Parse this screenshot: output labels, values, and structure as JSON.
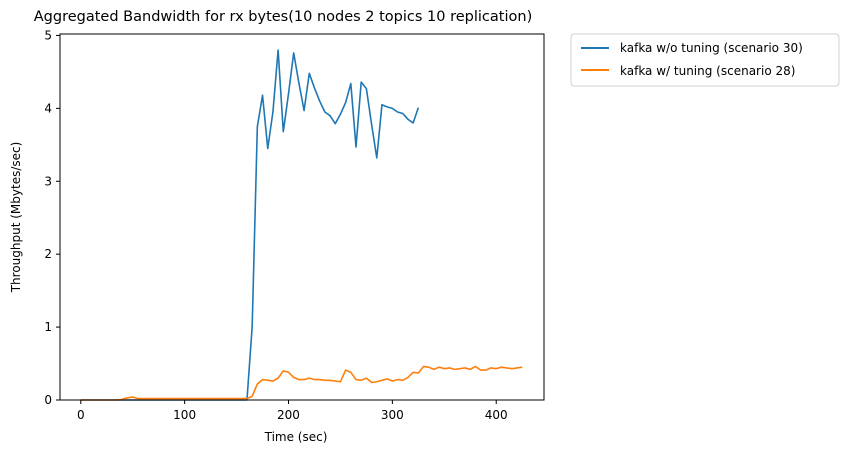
{
  "chart_data": {
    "type": "line",
    "title": "Aggregated Bandwidth for rx bytes(10 nodes 2 topics 10 replication)",
    "xlabel": "Time (sec)",
    "ylabel": "Throughput (Mbytes/sec)",
    "xlim": [
      -20,
      446
    ],
    "ylim": [
      0,
      5.02
    ],
    "xticks": [
      0,
      100,
      200,
      300,
      400
    ],
    "yticks": [
      0,
      1,
      2,
      3,
      4,
      5
    ],
    "grid": false,
    "legend_position": "outside-top-right",
    "series": [
      {
        "name": "kafka w/o tuning (scenario 30)",
        "color": "#1f77b4",
        "x": [
          0,
          5,
          10,
          15,
          20,
          25,
          30,
          35,
          40,
          45,
          50,
          55,
          60,
          65,
          70,
          75,
          80,
          85,
          90,
          95,
          100,
          105,
          110,
          115,
          120,
          125,
          130,
          135,
          140,
          145,
          150,
          155,
          160,
          165,
          170,
          175,
          180,
          185,
          190,
          195,
          200,
          205,
          210,
          215,
          220,
          225,
          230,
          235,
          240,
          245,
          250,
          255,
          260,
          265,
          270,
          275,
          280,
          285,
          290,
          295,
          300,
          305,
          310,
          315,
          320,
          325
        ],
        "y": [
          0,
          0,
          0,
          0,
          0,
          0,
          0,
          0,
          0,
          0,
          0,
          0,
          0,
          0,
          0,
          0,
          0,
          0,
          0,
          0,
          0,
          0,
          0,
          0,
          0,
          0,
          0,
          0,
          0,
          0,
          0,
          0,
          0,
          1.0,
          3.75,
          4.18,
          3.45,
          3.95,
          4.8,
          3.68,
          4.2,
          4.76,
          4.35,
          3.97,
          4.48,
          4.28,
          4.1,
          3.95,
          3.9,
          3.79,
          3.92,
          4.08,
          4.34,
          3.47,
          4.36,
          4.27,
          3.78,
          3.32,
          4.05,
          4.02,
          4.0,
          3.95,
          3.93,
          3.85,
          3.8,
          4.01
        ]
      },
      {
        "name": "kafka w/ tuning (scenario 28)",
        "color": "#ff7f0e",
        "x": [
          0,
          5,
          10,
          15,
          20,
          25,
          30,
          35,
          40,
          45,
          50,
          55,
          60,
          65,
          70,
          75,
          80,
          85,
          90,
          95,
          100,
          105,
          110,
          115,
          120,
          125,
          130,
          135,
          140,
          145,
          150,
          155,
          160,
          165,
          170,
          175,
          180,
          185,
          190,
          195,
          200,
          205,
          210,
          215,
          220,
          225,
          230,
          235,
          240,
          245,
          250,
          255,
          260,
          265,
          270,
          275,
          280,
          285,
          290,
          295,
          300,
          305,
          310,
          315,
          320,
          325,
          330,
          335,
          340,
          345,
          350,
          355,
          360,
          365,
          370,
          375,
          380,
          385,
          390,
          395,
          400,
          405,
          410,
          415,
          420,
          425
        ],
        "y": [
          0,
          0,
          0,
          0,
          0,
          0,
          0,
          0,
          0.01,
          0.03,
          0.04,
          0.02,
          0.02,
          0.02,
          0.02,
          0.02,
          0.02,
          0.02,
          0.02,
          0.02,
          0.02,
          0.02,
          0.02,
          0.02,
          0.02,
          0.02,
          0.02,
          0.02,
          0.02,
          0.02,
          0.02,
          0.02,
          0.02,
          0.05,
          0.22,
          0.28,
          0.27,
          0.26,
          0.3,
          0.4,
          0.38,
          0.31,
          0.28,
          0.28,
          0.3,
          0.28,
          0.28,
          0.27,
          0.27,
          0.26,
          0.25,
          0.41,
          0.38,
          0.28,
          0.27,
          0.3,
          0.24,
          0.25,
          0.27,
          0.29,
          0.26,
          0.28,
          0.27,
          0.31,
          0.38,
          0.37,
          0.46,
          0.45,
          0.42,
          0.45,
          0.43,
          0.44,
          0.42,
          0.43,
          0.44,
          0.42,
          0.46,
          0.41,
          0.41,
          0.44,
          0.43,
          0.45,
          0.44,
          0.43,
          0.44,
          0.45
        ]
      }
    ]
  }
}
